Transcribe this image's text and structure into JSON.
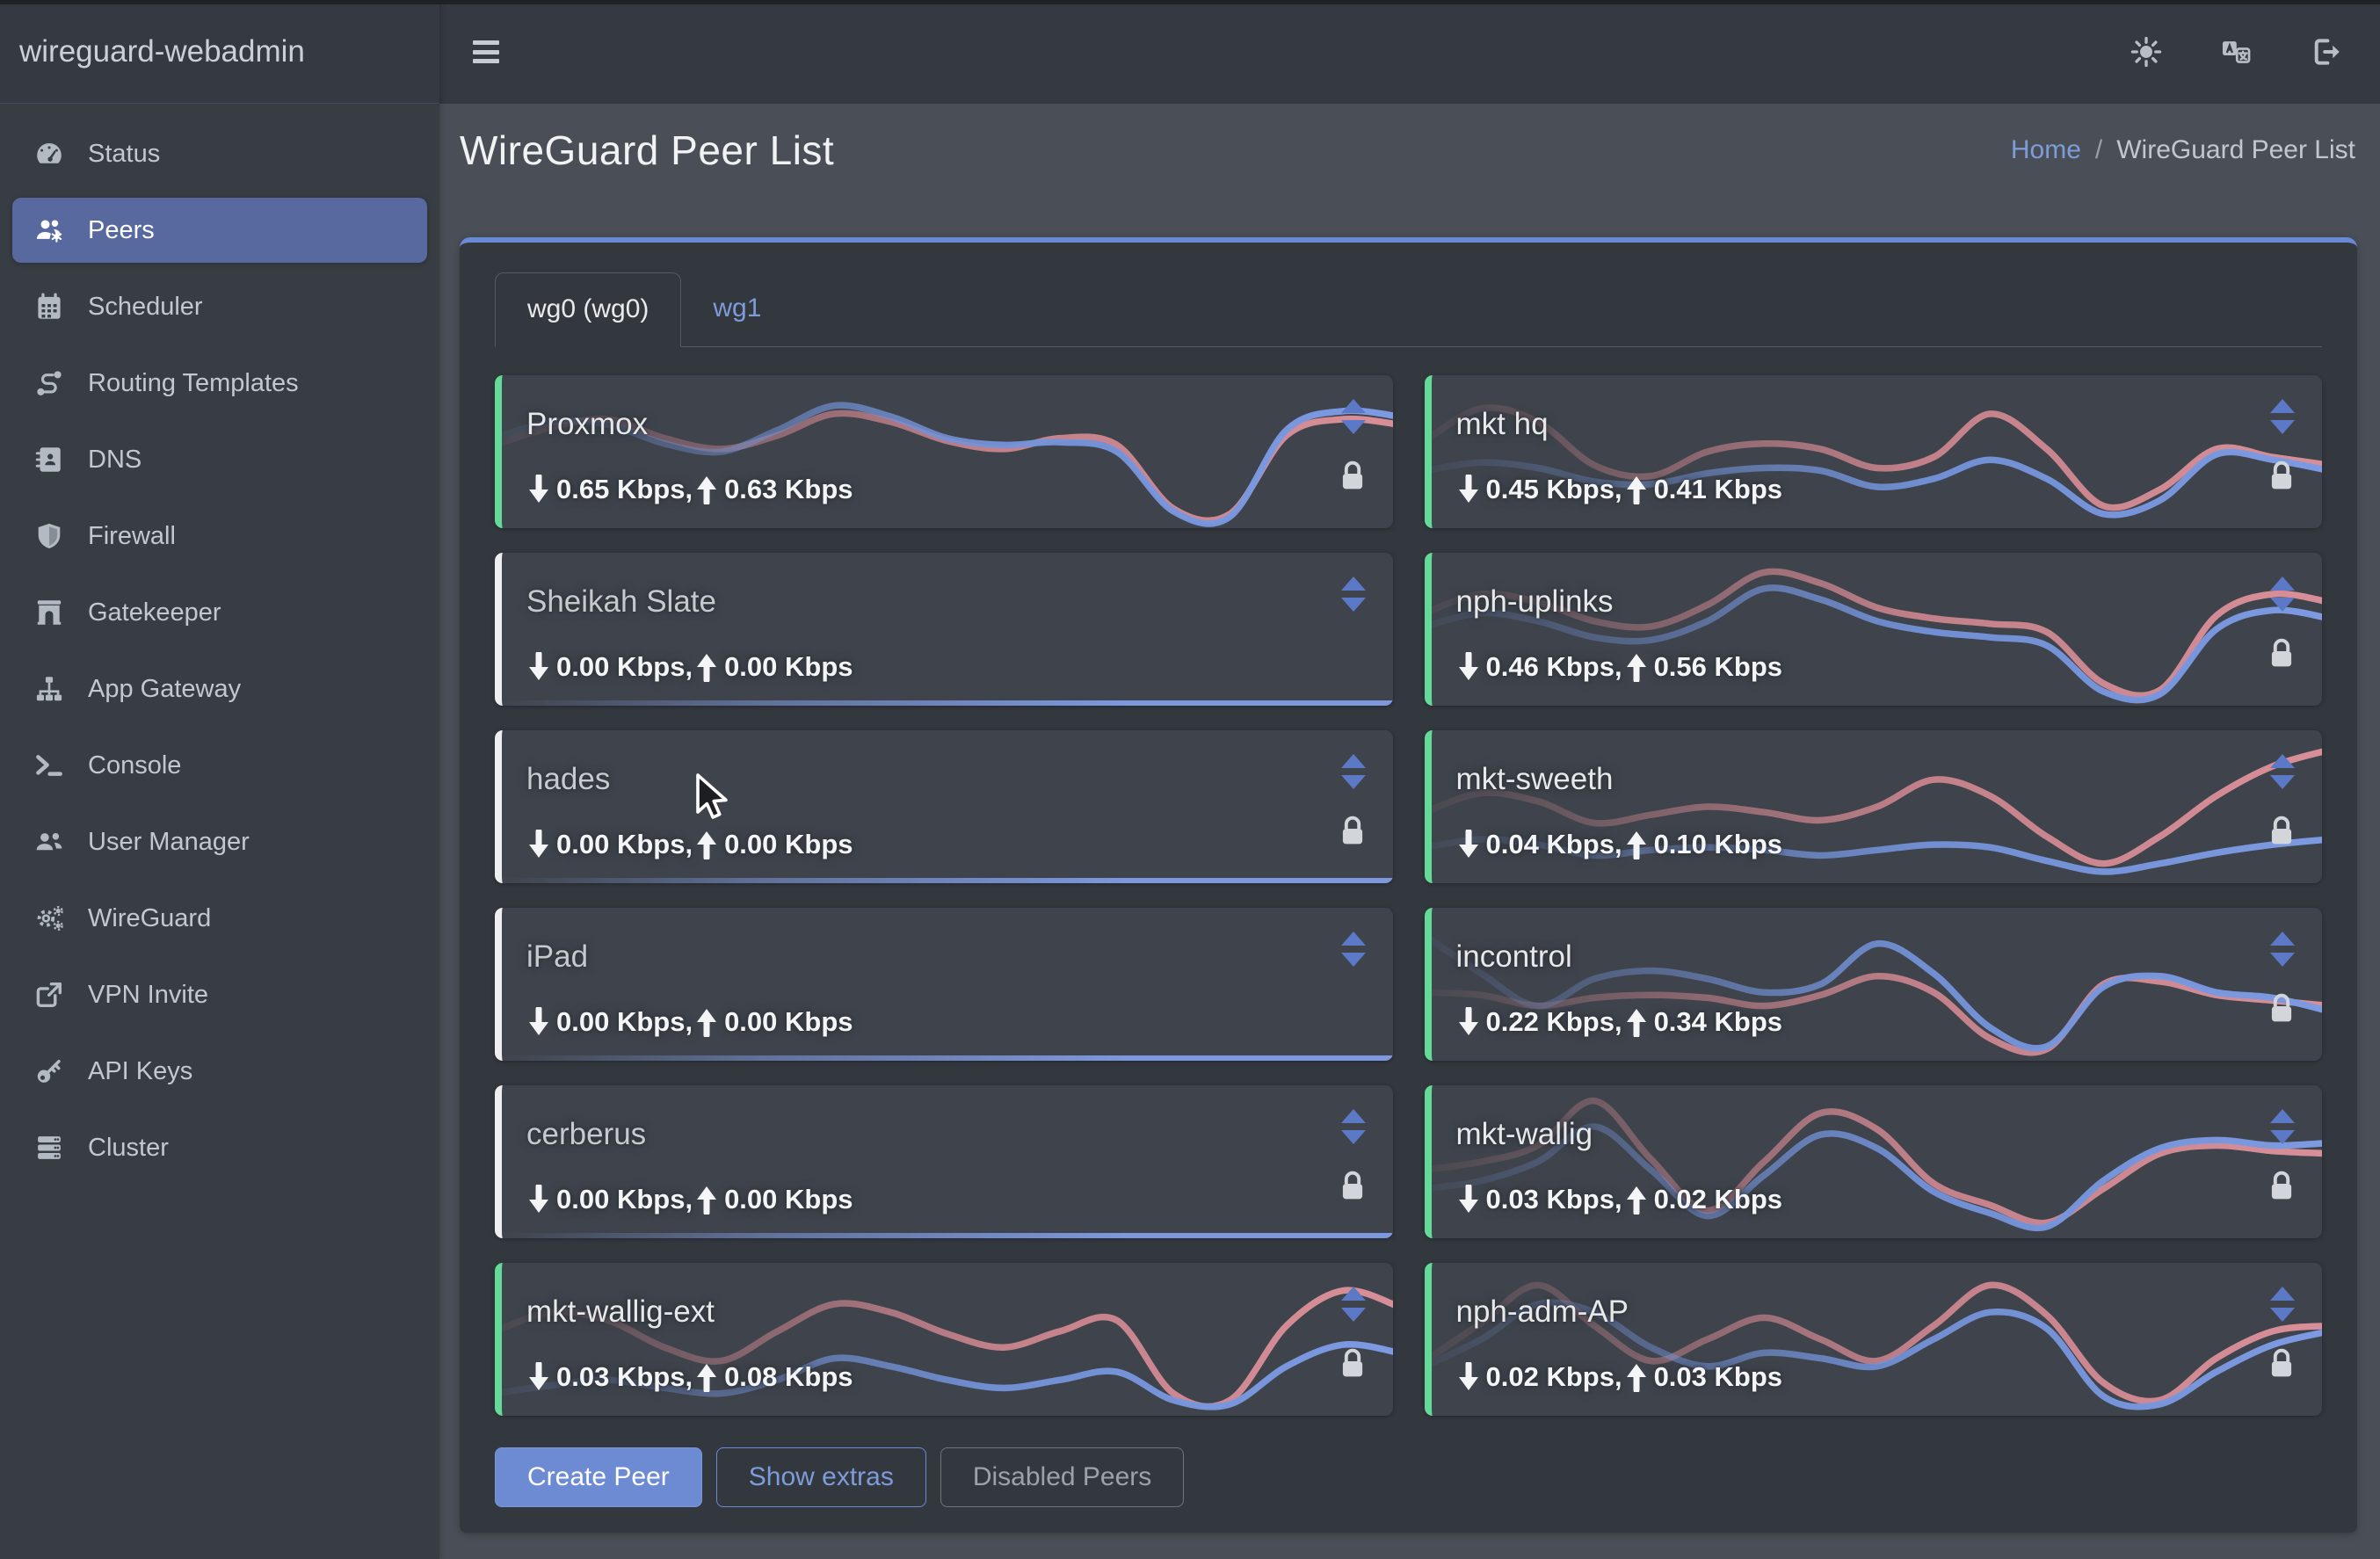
{
  "brand": "wireguard-webadmin",
  "navbar": {
    "menu_icon": "hamburger-menu-icon",
    "right_icons": [
      "theme-sun-icon",
      "language-icon",
      "logout-icon"
    ]
  },
  "sidebar": {
    "items": [
      {
        "label": "Status",
        "icon": "tachometer-icon",
        "active": false
      },
      {
        "label": "Peers",
        "icon": "users-gear-icon",
        "active": true
      },
      {
        "label": "Scheduler",
        "icon": "calendar-icon",
        "active": false
      },
      {
        "label": "Routing Templates",
        "icon": "route-icon",
        "active": false
      },
      {
        "label": "DNS",
        "icon": "address-book-icon",
        "active": false
      },
      {
        "label": "Firewall",
        "icon": "shield-icon",
        "active": false
      },
      {
        "label": "Gatekeeper",
        "icon": "archway-icon",
        "active": false
      },
      {
        "label": "App Gateway",
        "icon": "sitemap-icon",
        "active": false
      },
      {
        "label": "Console",
        "icon": "terminal-icon",
        "active": false
      },
      {
        "label": "User Manager",
        "icon": "users-icon",
        "active": false
      },
      {
        "label": "WireGuard",
        "icon": "gears-icon",
        "active": false
      },
      {
        "label": "VPN Invite",
        "icon": "share-icon",
        "active": false
      },
      {
        "label": "API Keys",
        "icon": "key-icon",
        "active": false
      },
      {
        "label": "Cluster",
        "icon": "server-icon",
        "active": false
      }
    ]
  },
  "page": {
    "title": "WireGuard Peer List",
    "breadcrumb": {
      "home": "Home",
      "separator": "/",
      "current": "WireGuard Peer List"
    }
  },
  "tabs": [
    {
      "label": "wg0 (wg0)",
      "active": true
    },
    {
      "label": "wg1",
      "active": false
    }
  ],
  "buttons": {
    "create": "Create Peer",
    "extras": "Show extras",
    "disabled": "Disabled Peers"
  },
  "colors": {
    "accent_active": "#63da97",
    "accent_inactive": "#eceef0",
    "spark_red": "#c9848d",
    "spark_blue": "#7392d8",
    "flat_blue": "#7c98de",
    "primary_blue": "#6d8bd3",
    "link_blue": "#7e9cd9"
  },
  "peers": [
    {
      "name": "Proxmox",
      "down": "0.65 Kbps,",
      "up": "0.63 Kbps",
      "active": true,
      "locked": true,
      "spark_red": [
        0.55,
        0.68,
        0.74,
        0.6,
        0.52,
        0.62,
        0.78,
        0.72,
        0.58,
        0.52,
        0.6,
        0.55,
        0.08,
        0.04,
        0.62,
        0.74,
        0.7
      ],
      "spark_blue": [
        0.6,
        0.72,
        0.7,
        0.56,
        0.5,
        0.66,
        0.84,
        0.76,
        0.6,
        0.55,
        0.57,
        0.5,
        0.06,
        0.02,
        0.66,
        0.8,
        0.76
      ]
    },
    {
      "name": "mkt hq",
      "down": "0.45 Kbps,",
      "up": "0.41 Kbps",
      "active": true,
      "locked": true,
      "spark_red": [
        0.58,
        0.82,
        0.72,
        0.4,
        0.32,
        0.5,
        0.56,
        0.52,
        0.38,
        0.46,
        0.78,
        0.52,
        0.1,
        0.22,
        0.52,
        0.46,
        0.4
      ],
      "spark_blue": [
        0.36,
        0.42,
        0.38,
        0.28,
        0.26,
        0.34,
        0.38,
        0.36,
        0.24,
        0.3,
        0.44,
        0.3,
        0.04,
        0.14,
        0.48,
        0.44,
        0.36
      ]
    },
    {
      "name": "Sheikah Slate",
      "down": "0.00 Kbps,",
      "up": "0.00 Kbps",
      "active": false,
      "locked": false,
      "spark_red": [],
      "spark_blue": []
    },
    {
      "name": "nph-uplinks",
      "down": "0.46 Kbps,",
      "up": "0.56 Kbps",
      "active": true,
      "locked": true,
      "spark_red": [
        0.62,
        0.76,
        0.7,
        0.56,
        0.52,
        0.68,
        0.92,
        0.84,
        0.66,
        0.58,
        0.54,
        0.48,
        0.1,
        0.05,
        0.6,
        0.76,
        0.7
      ],
      "spark_blue": [
        0.52,
        0.62,
        0.56,
        0.44,
        0.42,
        0.56,
        0.8,
        0.72,
        0.56,
        0.48,
        0.44,
        0.38,
        0.04,
        0.02,
        0.5,
        0.64,
        0.58
      ]
    },
    {
      "name": "hades",
      "down": "0.00 Kbps,",
      "up": "0.00 Kbps",
      "active": false,
      "locked": true,
      "spark_red": [],
      "spark_blue": []
    },
    {
      "name": "mkt-sweeth",
      "down": "0.04 Kbps,",
      "up": "0.10 Kbps",
      "active": true,
      "locked": true,
      "spark_red": [
        0.46,
        0.6,
        0.54,
        0.38,
        0.44,
        0.5,
        0.46,
        0.4,
        0.5,
        0.7,
        0.58,
        0.28,
        0.08,
        0.28,
        0.58,
        0.8,
        0.92
      ],
      "spark_blue": [
        0.2,
        0.26,
        0.22,
        0.14,
        0.18,
        0.2,
        0.18,
        0.14,
        0.18,
        0.22,
        0.2,
        0.1,
        0.02,
        0.08,
        0.16,
        0.22,
        0.26
      ]
    },
    {
      "name": "iPad",
      "down": "0.00 Kbps,",
      "up": "0.00 Kbps",
      "active": false,
      "locked": false,
      "spark_red": [],
      "spark_blue": []
    },
    {
      "name": "incontrol",
      "down": "0.22 Kbps,",
      "up": "0.34 Kbps",
      "active": true,
      "locked": true,
      "spark_red": [
        0.44,
        0.42,
        0.34,
        0.4,
        0.42,
        0.4,
        0.34,
        0.42,
        0.56,
        0.44,
        0.1,
        0.02,
        0.5,
        0.52,
        0.42,
        0.38,
        0.34
      ],
      "spark_blue": [
        0.86,
        0.58,
        0.34,
        0.54,
        0.6,
        0.54,
        0.44,
        0.5,
        0.8,
        0.58,
        0.18,
        0.04,
        0.48,
        0.56,
        0.44,
        0.4,
        0.3
      ]
    },
    {
      "name": "cerberus",
      "down": "0.00 Kbps,",
      "up": "0.00 Kbps",
      "active": false,
      "locked": true,
      "spark_red": [],
      "spark_blue": []
    },
    {
      "name": "mkt-wallig",
      "down": "0.03 Kbps,",
      "up": "0.02 Kbps",
      "active": true,
      "locked": true,
      "spark_red": [
        0.44,
        0.5,
        0.62,
        0.95,
        0.52,
        0.14,
        0.5,
        0.86,
        0.74,
        0.34,
        0.18,
        0.05,
        0.3,
        0.56,
        0.62,
        0.58,
        0.56
      ],
      "spark_blue": [
        0.3,
        0.36,
        0.5,
        0.76,
        0.44,
        0.1,
        0.4,
        0.7,
        0.6,
        0.28,
        0.12,
        0.02,
        0.36,
        0.6,
        0.66,
        0.62,
        0.64
      ]
    },
    {
      "name": "mkt-wallig-ext",
      "down": "0.03 Kbps,",
      "up": "0.08 Kbps",
      "active": true,
      "locked": true,
      "spark_red": [
        0.56,
        0.7,
        0.64,
        0.44,
        0.34,
        0.56,
        0.76,
        0.7,
        0.54,
        0.44,
        0.56,
        0.64,
        0.1,
        0.05,
        0.6,
        0.86,
        0.74
      ],
      "spark_blue": [
        0.1,
        0.16,
        0.2,
        0.14,
        0.1,
        0.2,
        0.36,
        0.3,
        0.2,
        0.14,
        0.2,
        0.26,
        0.05,
        0.02,
        0.3,
        0.46,
        0.4
      ]
    },
    {
      "name": "nph-adm-AP",
      "down": "0.02 Kbps,",
      "up": "0.03 Kbps",
      "active": true,
      "locked": true,
      "spark_red": [
        0.34,
        0.62,
        0.9,
        0.6,
        0.34,
        0.5,
        0.66,
        0.5,
        0.34,
        0.6,
        0.9,
        0.68,
        0.18,
        0.05,
        0.36,
        0.56,
        0.6
      ],
      "spark_blue": [
        0.3,
        0.5,
        0.76,
        0.7,
        0.44,
        0.3,
        0.4,
        0.36,
        0.3,
        0.5,
        0.7,
        0.58,
        0.08,
        0.02,
        0.26,
        0.46,
        0.56
      ]
    }
  ]
}
